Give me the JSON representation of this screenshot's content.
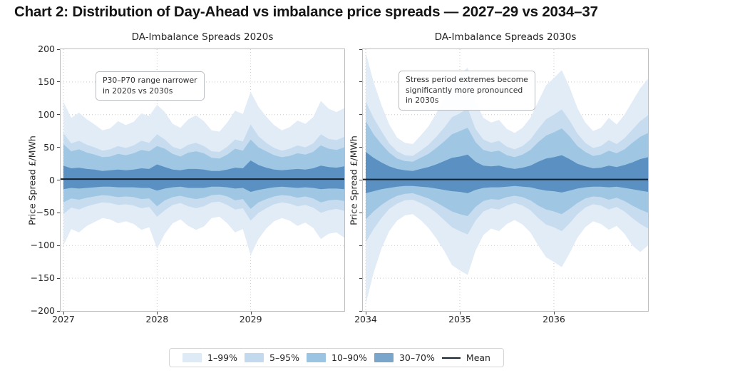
{
  "title": "Chart 2: Distribution of Day-Ahead vs imbalance price spreads — 2027–29 vs 2034–37",
  "legend": {
    "items": [
      {
        "label": "1–99%",
        "color": "#deeaf5",
        "type": "patch"
      },
      {
        "label": "5–95%",
        "color": "#c3d9ee",
        "type": "patch"
      },
      {
        "label": "10–90%",
        "color": "#9ac4e1",
        "type": "patch"
      },
      {
        "label": "30–70%",
        "color": "#7ba6cc",
        "type": "patch"
      },
      {
        "label": "Mean",
        "color": "#16232f",
        "type": "line"
      }
    ]
  },
  "chart_data": [
    {
      "type": "area",
      "title": "DA-Imbalance Spreads 2020s",
      "ylabel": "Price Spread £/MWh",
      "annotation": "P30–P70 range narrower\nin 2020s vs 2030s",
      "x_start": 2027.0,
      "x_step": 0.08333,
      "xlim": [
        2026.97,
        2030.0
      ],
      "ylim": [
        -200,
        200
      ],
      "x_ticks": [
        2027,
        2028,
        2029
      ],
      "y_ticks": [
        200,
        150,
        100,
        50,
        0,
        -50,
        -100,
        -150,
        -200
      ],
      "show_y_tick_labels": true,
      "grid": true,
      "mean": 1.5,
      "mean_color": "#16232f",
      "bands": [
        {
          "label": "1–99%",
          "color": "#e2ecf6",
          "hi": [
            120,
            95,
            103,
            93,
            85,
            76,
            79,
            90,
            84,
            89,
            102,
            98,
            115,
            104,
            86,
            80,
            93,
            99,
            90,
            76,
            74,
            88,
            106,
            101,
            135,
            112,
            97,
            84,
            76,
            81,
            91,
            86,
            96,
            121,
            109,
            104,
            110
          ],
          "lo": [
            -100,
            -75,
            -80,
            -70,
            -64,
            -58,
            -60,
            -66,
            -63,
            -67,
            -76,
            -72,
            -105,
            -82,
            -66,
            -60,
            -70,
            -76,
            -71,
            -58,
            -56,
            -66,
            -80,
            -75,
            -115,
            -90,
            -74,
            -63,
            -58,
            -62,
            -70,
            -65,
            -73,
            -90,
            -82,
            -80,
            -88
          ]
        },
        {
          "label": "5–95%",
          "color": "#c7dcef",
          "hi": [
            72,
            56,
            60,
            54,
            50,
            45,
            47,
            52,
            49,
            53,
            60,
            57,
            70,
            62,
            51,
            47,
            54,
            57,
            52,
            44,
            43,
            51,
            62,
            59,
            85,
            67,
            57,
            49,
            45,
            48,
            53,
            50,
            56,
            70,
            63,
            61,
            66
          ],
          "lo": [
            -52,
            -42,
            -45,
            -40,
            -37,
            -34,
            -35,
            -38,
            -37,
            -39,
            -43,
            -41,
            -56,
            -46,
            -38,
            -35,
            -40,
            -43,
            -40,
            -34,
            -33,
            -38,
            -45,
            -43,
            -62,
            -50,
            -43,
            -37,
            -34,
            -36,
            -40,
            -38,
            -42,
            -50,
            -46,
            -44,
            -47
          ]
        },
        {
          "label": "10–90%",
          "color": "#9fc7e4",
          "hi": [
            55,
            44,
            47,
            42,
            39,
            35,
            36,
            40,
            38,
            41,
            46,
            44,
            52,
            48,
            40,
            36,
            42,
            44,
            41,
            34,
            33,
            39,
            48,
            45,
            62,
            50,
            44,
            38,
            35,
            37,
            41,
            39,
            43,
            53,
            48,
            46,
            50
          ],
          "lo": [
            -34,
            -28,
            -30,
            -27,
            -25,
            -23,
            -24,
            -26,
            -25,
            -26,
            -29,
            -28,
            -40,
            -31,
            -26,
            -24,
            -27,
            -29,
            -27,
            -23,
            -22,
            -25,
            -31,
            -29,
            -44,
            -34,
            -29,
            -25,
            -23,
            -24,
            -27,
            -25,
            -28,
            -34,
            -31,
            -30,
            -32
          ]
        },
        {
          "label": "30–70%",
          "color": "#5a90c2",
          "hi": [
            22,
            18,
            19,
            17,
            16,
            14,
            15,
            16,
            15,
            16,
            18,
            17,
            24,
            20,
            16,
            15,
            17,
            17,
            16,
            14,
            14,
            16,
            19,
            18,
            30,
            23,
            19,
            16,
            15,
            16,
            17,
            16,
            18,
            22,
            20,
            19,
            21
          ],
          "lo": [
            -14,
            -12,
            -13,
            -12,
            -11,
            -10,
            -10,
            -11,
            -11,
            -11,
            -12,
            -12,
            -16,
            -13,
            -11,
            -10,
            -12,
            -12,
            -12,
            -10,
            -10,
            -11,
            -13,
            -12,
            -18,
            -15,
            -13,
            -11,
            -10,
            -11,
            -12,
            -11,
            -12,
            -14,
            -13,
            -13,
            -14
          ]
        }
      ]
    },
    {
      "type": "area",
      "title": "DA-Imbalance Spreads 2030s",
      "ylabel": "Price Spread £/MWh",
      "annotation": "Stress period extremes become\nsignificantly more pronounced\nin 2030s",
      "x_start": 2034.0,
      "x_step": 0.08333,
      "xlim": [
        2033.97,
        2037.0
      ],
      "ylim": [
        -200,
        200
      ],
      "x_ticks": [
        2034,
        2035,
        2036
      ],
      "y_ticks": [
        200,
        150,
        100,
        50,
        0,
        -50,
        -100,
        -150,
        -200
      ],
      "show_y_tick_labels": false,
      "grid": true,
      "mean": 1.0,
      "mean_color": "#16232f",
      "bands": [
        {
          "label": "1–99%",
          "color": "#e2ecf6",
          "hi": [
            195,
            150,
            115,
            85,
            65,
            57,
            55,
            68,
            82,
            102,
            125,
            150,
            160,
            172,
            120,
            95,
            88,
            92,
            78,
            72,
            80,
            95,
            120,
            145,
            156,
            168,
            142,
            110,
            88,
            75,
            80,
            95,
            85,
            100,
            120,
            140,
            155
          ],
          "lo": [
            -190,
            -142,
            -105,
            -78,
            -62,
            -54,
            -52,
            -61,
            -73,
            -89,
            -108,
            -130,
            -138,
            -145,
            -108,
            -84,
            -74,
            -78,
            -67,
            -61,
            -68,
            -80,
            -100,
            -118,
            -125,
            -133,
            -112,
            -88,
            -72,
            -63,
            -67,
            -76,
            -70,
            -82,
            -100,
            -110,
            -100
          ]
        },
        {
          "label": "5–95%",
          "color": "#c7dcef",
          "hi": [
            120,
            95,
            75,
            56,
            44,
            38,
            37,
            45,
            54,
            66,
            80,
            96,
            102,
            110,
            78,
            62,
            57,
            60,
            51,
            47,
            52,
            62,
            78,
            93,
            100,
            108,
            91,
            71,
            57,
            49,
            52,
            61,
            55,
            64,
            77,
            90,
            99
          ],
          "lo": [
            -95,
            -75,
            -58,
            -44,
            -36,
            -31,
            -30,
            -35,
            -41,
            -50,
            -61,
            -72,
            -78,
            -83,
            -62,
            -48,
            -43,
            -45,
            -39,
            -35,
            -39,
            -46,
            -58,
            -68,
            -72,
            -78,
            -66,
            -52,
            -42,
            -37,
            -39,
            -45,
            -41,
            -48,
            -58,
            -67,
            -74
          ]
        },
        {
          "label": "10–90%",
          "color": "#9fc7e4",
          "hi": [
            90,
            70,
            55,
            42,
            33,
            29,
            28,
            34,
            40,
            49,
            59,
            70,
            75,
            80,
            58,
            46,
            43,
            45,
            38,
            35,
            39,
            46,
            58,
            68,
            73,
            79,
            67,
            52,
            43,
            37,
            39,
            45,
            41,
            47,
            57,
            66,
            72
          ],
          "lo": [
            -60,
            -48,
            -38,
            -30,
            -24,
            -21,
            -20,
            -24,
            -28,
            -34,
            -41,
            -48,
            -52,
            -55,
            -41,
            -32,
            -29,
            -30,
            -26,
            -24,
            -26,
            -31,
            -39,
            -45,
            -48,
            -52,
            -44,
            -35,
            -28,
            -25,
            -26,
            -30,
            -27,
            -32,
            -39,
            -45,
            -50
          ]
        },
        {
          "label": "30–70%",
          "color": "#5a90c2",
          "hi": [
            43,
            34,
            27,
            21,
            17,
            15,
            14,
            17,
            20,
            24,
            29,
            34,
            36,
            39,
            28,
            22,
            21,
            22,
            19,
            17,
            19,
            22,
            28,
            33,
            35,
            38,
            32,
            25,
            21,
            18,
            19,
            22,
            20,
            23,
            27,
            32,
            35
          ],
          "lo": [
            -20,
            -17,
            -14,
            -12,
            -10,
            -9,
            -9,
            -10,
            -11,
            -13,
            -15,
            -17,
            -18,
            -20,
            -15,
            -12,
            -11,
            -11,
            -10,
            -9,
            -10,
            -11,
            -14,
            -16,
            -17,
            -19,
            -16,
            -13,
            -11,
            -10,
            -10,
            -11,
            -10,
            -12,
            -14,
            -16,
            -18
          ]
        }
      ]
    }
  ]
}
